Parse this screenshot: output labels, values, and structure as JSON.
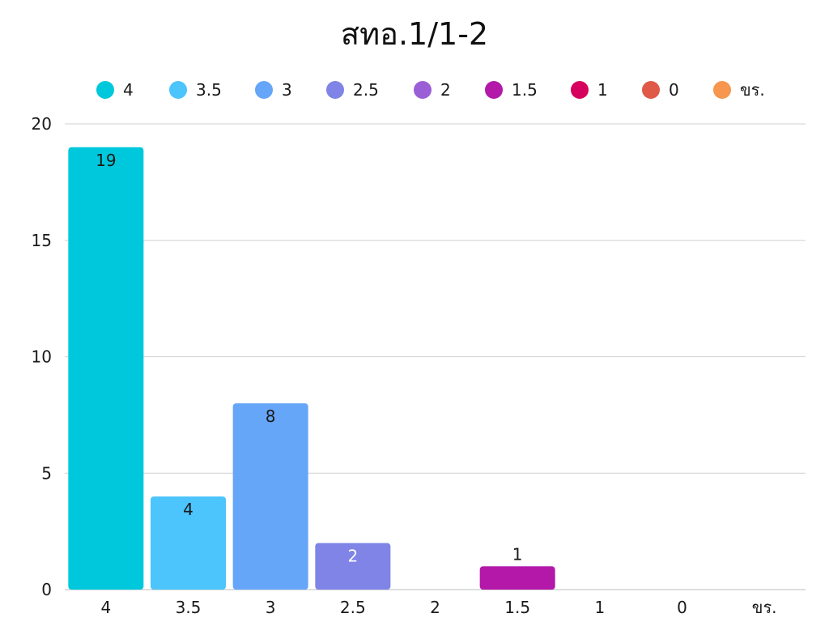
{
  "chart_data": {
    "type": "bar",
    "title": "สทอ.1/1-2",
    "xlabel": "",
    "ylabel": "",
    "categories": [
      "4",
      "3.5",
      "3",
      "2.5",
      "2",
      "1.5",
      "1",
      "0",
      "ขร."
    ],
    "values": [
      19,
      4,
      8,
      2,
      0,
      1,
      0,
      0,
      0
    ],
    "data_labels": [
      "19",
      "4",
      "8",
      "2",
      "",
      "1",
      "",
      "",
      ""
    ],
    "colors": [
      "#00c8dc",
      "#4cc4fc",
      "#66a6f8",
      "#7f84e6",
      "#9a5fd6",
      "#b318a8",
      "#d6005e",
      "#e05848",
      "#f6964f"
    ],
    "ylim": [
      0,
      20
    ],
    "yticks": [
      0,
      5,
      10,
      15,
      20
    ],
    "grid": true,
    "legend": {
      "position": "top",
      "entries": [
        "4",
        "3.5",
        "3",
        "2.5",
        "2",
        "1.5",
        "1",
        "0",
        "ขร."
      ]
    }
  }
}
